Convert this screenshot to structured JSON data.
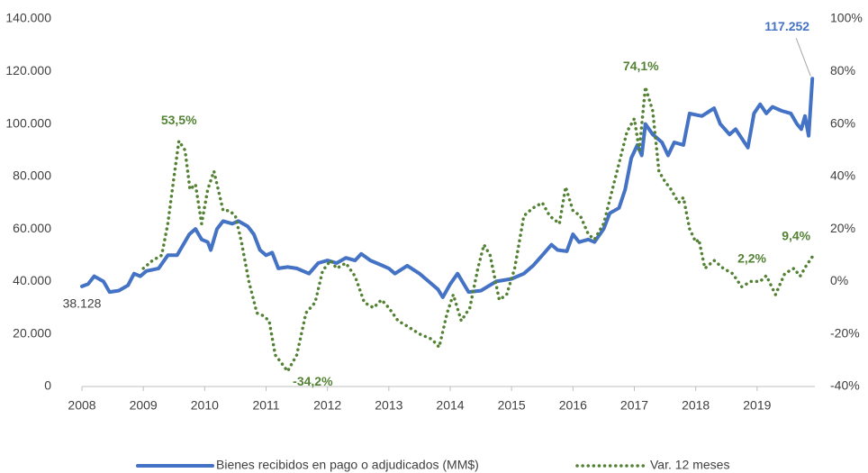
{
  "chart_data": {
    "type": "line",
    "xlim": [
      2008,
      2020
    ],
    "xticks": [
      2008,
      2009,
      2010,
      2011,
      2012,
      2013,
      2014,
      2015,
      2016,
      2017,
      2018,
      2019
    ],
    "ylim": [
      0,
      140000
    ],
    "yticks": [
      0,
      {
        "value": 20000,
        "label": "20.000"
      },
      {
        "value": 40000,
        "label": "40.000"
      },
      {
        "value": 60000,
        "label": "60.000"
      },
      {
        "value": 80000,
        "label": "80.000"
      },
      {
        "value": 100000,
        "label": "100.000"
      },
      {
        "value": 120000,
        "label": "120.000"
      },
      {
        "value": 140000,
        "label": "140.000"
      }
    ],
    "y2lim": [
      -40,
      100
    ],
    "y2ticks": [
      {
        "value": -40,
        "label": "-40%"
      },
      {
        "value": -20,
        "label": "-20%"
      },
      {
        "value": 0,
        "label": "0%"
      },
      {
        "value": 20,
        "label": "20%"
      },
      {
        "value": 40,
        "label": "40%"
      },
      {
        "value": 60,
        "label": "60%"
      },
      {
        "value": 80,
        "label": "80%"
      },
      {
        "value": 100,
        "label": "100%"
      }
    ],
    "series": [
      {
        "name": "Bienes recibidos en pago o adjudicados (MM$)",
        "color": "#4472c4",
        "style": "solid",
        "x": [
          2008.0,
          2008.1,
          2008.2,
          2008.35,
          2008.45,
          2008.6,
          2008.75,
          2008.85,
          2008.95,
          2009.05,
          2009.25,
          2009.4,
          2009.55,
          2009.65,
          2009.75,
          2009.85,
          2009.95,
          2010.05,
          2010.1,
          2010.2,
          2010.3,
          2010.45,
          2010.55,
          2010.7,
          2010.8,
          2010.9,
          2011.0,
          2011.1,
          2011.2,
          2011.35,
          2011.5,
          2011.7,
          2011.85,
          2012.0,
          2012.15,
          2012.3,
          2012.45,
          2012.55,
          2012.7,
          2012.9,
          2013.0,
          2013.1,
          2013.3,
          2013.5,
          2013.65,
          2013.8,
          2013.88,
          2014.0,
          2014.12,
          2014.3,
          2014.5,
          2014.75,
          2015.0,
          2015.2,
          2015.35,
          2015.5,
          2015.65,
          2015.75,
          2015.9,
          2016.0,
          2016.1,
          2016.25,
          2016.35,
          2016.5,
          2016.6,
          2016.75,
          2016.85,
          2016.95,
          2017.05,
          2017.12,
          2017.18,
          2017.3,
          2017.45,
          2017.55,
          2017.65,
          2017.8,
          2017.9,
          2018.0,
          2018.1,
          2018.2,
          2018.3,
          2018.4,
          2018.55,
          2018.65,
          2018.85,
          2018.95,
          2019.05,
          2019.15,
          2019.25,
          2019.4,
          2019.55,
          2019.65,
          2019.72,
          2019.78,
          2019.84,
          2019.9
        ],
        "values": [
          38128,
          39000,
          42000,
          40000,
          36000,
          36500,
          38500,
          43000,
          42000,
          44000,
          45000,
          50000,
          50000,
          54000,
          58000,
          60000,
          56000,
          55000,
          52000,
          60000,
          63000,
          62000,
          63000,
          61000,
          58000,
          52000,
          50000,
          51000,
          45000,
          45500,
          45000,
          43000,
          47000,
          48000,
          47000,
          49000,
          48000,
          50500,
          48000,
          46000,
          45000,
          43000,
          46000,
          43000,
          40000,
          37000,
          34000,
          39000,
          43000,
          36000,
          36500,
          40000,
          41000,
          43000,
          46000,
          50000,
          54000,
          52000,
          51500,
          58000,
          55000,
          56000,
          55000,
          60000,
          66000,
          68000,
          75000,
          87000,
          92000,
          88000,
          100000,
          96000,
          93000,
          88000,
          93000,
          92000,
          104000,
          103500,
          103000,
          104500,
          106000,
          100000,
          96000,
          98000,
          91000,
          104000,
          107500,
          104000,
          106500,
          105000,
          104000,
          100000,
          98000,
          103000,
          95500,
          117252
        ],
        "value_labels": [
          "38.128",
          null,
          null,
          null,
          null,
          null,
          null,
          null,
          null,
          null,
          null,
          null,
          null,
          null,
          null,
          null,
          null,
          null,
          null,
          null,
          null,
          null,
          null,
          null,
          null,
          null,
          null,
          null,
          null,
          null,
          null,
          null,
          null,
          null,
          null,
          null,
          null,
          null,
          null,
          null,
          null,
          null,
          null,
          null,
          null,
          null,
          null,
          null,
          null,
          null,
          null,
          null,
          null,
          null,
          null,
          null,
          null,
          null,
          null,
          null,
          null,
          null,
          null,
          null,
          null,
          null,
          null,
          null,
          null,
          null,
          null,
          null,
          null,
          null,
          null,
          null,
          null,
          null,
          null,
          null,
          null,
          null,
          null,
          null,
          null,
          null,
          null,
          null,
          null,
          null,
          null,
          null,
          null,
          null,
          null,
          "117.252"
        ]
      },
      {
        "name": "Var. 12 meses",
        "color": "#548235",
        "style": "dotted",
        "axis": "y2",
        "x": [
          2009.0,
          2009.15,
          2009.3,
          2009.4,
          2009.5,
          2009.58,
          2009.68,
          2009.76,
          2009.85,
          2009.95,
          2010.05,
          2010.15,
          2010.3,
          2010.4,
          2010.5,
          2010.6,
          2010.72,
          2010.85,
          2010.95,
          2011.05,
          2011.15,
          2011.25,
          2011.35,
          2011.5,
          2011.65,
          2011.8,
          2011.92,
          2012.05,
          2012.15,
          2012.3,
          2012.45,
          2012.6,
          2012.75,
          2012.88,
          2013.0,
          2013.15,
          2013.3,
          2013.5,
          2013.7,
          2013.82,
          2013.95,
          2014.05,
          2014.18,
          2014.32,
          2014.45,
          2014.55,
          2014.65,
          2014.8,
          2014.92,
          2015.05,
          2015.2,
          2015.35,
          2015.5,
          2015.62,
          2015.78,
          2015.88,
          2016.0,
          2016.12,
          2016.25,
          2016.35,
          2016.5,
          2016.62,
          2016.75,
          2016.88,
          2017.0,
          2017.08,
          2017.18,
          2017.3,
          2017.4,
          2017.5,
          2017.6,
          2017.72,
          2017.8,
          2017.9,
          2018.0,
          2018.05,
          2018.15,
          2018.3,
          2018.45,
          2018.6,
          2018.75,
          2018.9,
          2019.05,
          2019.15,
          2019.3,
          2019.45,
          2019.6,
          2019.7,
          2019.8,
          2019.9
        ],
        "values": [
          5,
          8,
          10,
          22,
          40,
          53.5,
          50,
          35,
          37,
          22,
          35,
          42,
          27,
          27,
          25,
          15,
          0,
          -12,
          -13,
          -15,
          -28,
          -31,
          -34.2,
          -28,
          -12,
          -8,
          4,
          8,
          5,
          7,
          2,
          -8,
          -10,
          -7,
          -10,
          -15,
          -17,
          -20,
          -22,
          -25,
          -12,
          -5,
          -15,
          -10,
          5,
          14,
          10,
          -7,
          -5,
          5,
          25,
          28,
          30,
          25,
          22,
          36,
          27,
          25,
          18,
          16,
          22,
          33,
          45,
          57,
          62,
          50,
          74.1,
          65,
          42,
          38,
          35,
          30,
          32,
          20,
          15,
          16,
          5,
          8,
          5,
          3,
          -2,
          0,
          0,
          2.2,
          -5,
          3,
          5,
          2,
          6,
          9.4
        ],
        "value_labels": [
          null,
          null,
          null,
          null,
          null,
          "53,5%",
          null,
          null,
          null,
          null,
          null,
          null,
          null,
          null,
          null,
          null,
          null,
          null,
          null,
          null,
          null,
          null,
          "-34,2%",
          null,
          null,
          null,
          null,
          null,
          null,
          null,
          null,
          null,
          null,
          null,
          null,
          null,
          null,
          null,
          null,
          null,
          null,
          null,
          null,
          null,
          null,
          null,
          null,
          null,
          null,
          null,
          null,
          null,
          null,
          null,
          null,
          null,
          null,
          null,
          null,
          null,
          null,
          null,
          null,
          null,
          null,
          null,
          "74,1%",
          null,
          null,
          null,
          null,
          null,
          null,
          null,
          null,
          null,
          null,
          null,
          null,
          null,
          null,
          null,
          null,
          "2,2%",
          null,
          null,
          null,
          null,
          null,
          "9,4%"
        ]
      }
    ]
  }
}
